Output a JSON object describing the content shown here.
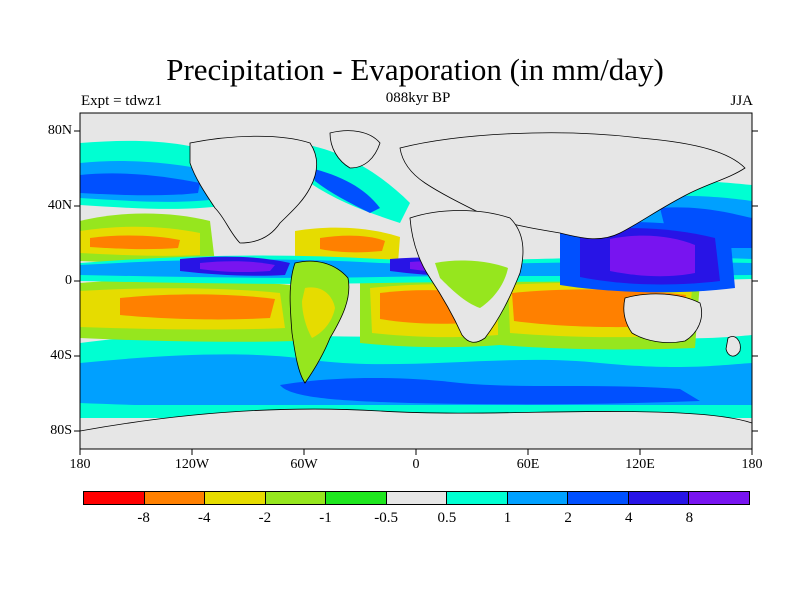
{
  "header": {
    "title": "Precipitation - Evaporation (in mm/day)",
    "left_label": "Expt = tdwz1",
    "center_label": "088kyr BP",
    "right_label": "JJA"
  },
  "map": {
    "lat_labels": [
      "80N",
      "40N",
      "0",
      "40S",
      "80S"
    ],
    "lon_labels": [
      "180",
      "120W",
      "60W",
      "0",
      "60E",
      "120E",
      "180"
    ]
  },
  "colorbar": {
    "colors": [
      "#ff0000",
      "#ff8000",
      "#e6dc00",
      "#96e61e",
      "#1ee61e",
      "#e6e6e6",
      "#00ffd2",
      "#00a0ff",
      "#0050ff",
      "#2814e6",
      "#7814f0"
    ],
    "labels": [
      "-8",
      "-4",
      "-2",
      "-1",
      "-0.5",
      "0.5",
      "1",
      "2",
      "4",
      "8"
    ]
  }
}
